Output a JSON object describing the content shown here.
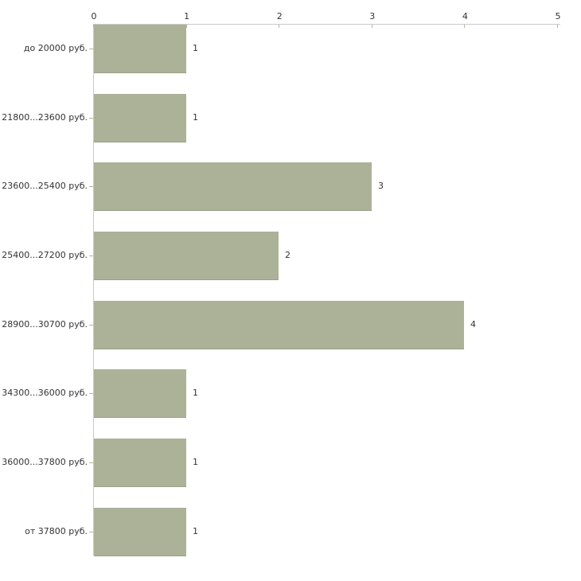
{
  "chart_data": {
    "type": "bar",
    "orientation": "horizontal",
    "title": "",
    "xlabel": "",
    "ylabel": "",
    "categories": [
      "до 20000 руб.",
      "21800...23600 руб.",
      "23600...25400 руб.",
      "25400...27200 руб.",
      "28900...30700 руб.",
      "34300...36000 руб.",
      "36000...37800 руб.",
      "от 37800 руб."
    ],
    "values": [
      1,
      1,
      3,
      2,
      4,
      1,
      1,
      1
    ],
    "value_labels": [
      "1",
      "1",
      "3",
      "2",
      "4",
      "1",
      "1",
      "1"
    ],
    "x_ticks": [
      "0",
      "1",
      "2",
      "3",
      "4",
      "5"
    ],
    "xlim": [
      0,
      5
    ],
    "grid": false,
    "legend": false,
    "axis_position": "top",
    "colors": {
      "bar_fill": "#abb298",
      "bar_edge": "#9ca287",
      "axis_line": "#c9c9c9",
      "tick_mark": "#b4b793",
      "text": "#333333",
      "background": "#ffffff"
    }
  }
}
